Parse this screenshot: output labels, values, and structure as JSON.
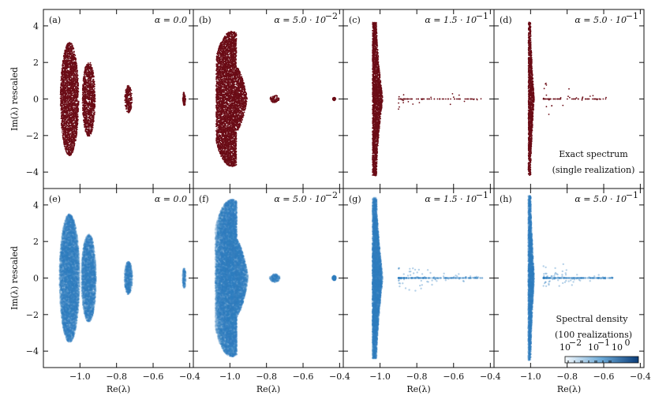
{
  "chart_data": {
    "type": "scatter",
    "figure_title": "",
    "xlabel": "Re(λ)",
    "ylabel": "Im(λ) rescaled",
    "xlim": [
      -1.2,
      -0.38
    ],
    "ylim": [
      -4.9,
      4.9
    ],
    "x_ticks": [
      -1.0,
      -0.8,
      -0.6,
      -0.4
    ],
    "x_tick_labels": [
      "−1.0",
      "−0.8",
      "−0.6",
      "−0.4"
    ],
    "y_ticks": [
      4,
      2,
      0,
      -2,
      -4
    ],
    "y_tick_labels": [
      "4",
      "2",
      "0",
      "−2",
      "−4"
    ],
    "rows": [
      {
        "name": "Exact spectrum",
        "legend_line1": "Exact spectrum",
        "legend_line2": "(single realization)",
        "color": "#6b0c16",
        "style": "points"
      },
      {
        "name": "Spectral density",
        "legend_line1": "Spectral density",
        "legend_line2": "(100 realizations)",
        "color": "#2f7dbf",
        "style": "density",
        "colorbar_labels": [
          "10",
          "−2",
          "10",
          "−1",
          "10",
          "0"
        ]
      }
    ],
    "panels": [
      {
        "label": "(a)",
        "alpha": "α = 0.0",
        "row": 0,
        "col": 0,
        "clusters": [
          {
            "center": -1.057,
            "half_width": 0.05,
            "half_height": 3.1
          },
          {
            "center": -0.952,
            "half_width": 0.035,
            "half_height": 2.05
          },
          {
            "center": -0.735,
            "half_width": 0.02,
            "half_height": 0.75
          },
          {
            "center": -0.43,
            "half_width": 0.008,
            "half_height": 0.4
          }
        ],
        "tail": {
          "start": 0,
          "end": 0
        }
      },
      {
        "label": "(b)",
        "alpha": "α = 5.0 · 10",
        "alpha_exp": "−2",
        "row": 0,
        "col": 1,
        "clusters": [
          {
            "center": -0.99,
            "half_width": 0.085,
            "half_height": 3.7,
            "shape": "diamond"
          },
          {
            "center": -0.755,
            "half_width": 0.025,
            "half_height": 0.2
          },
          {
            "center": -0.43,
            "half_width": 0.008,
            "half_height": 0.08
          }
        ],
        "tail": {
          "start": 0,
          "end": 0
        }
      },
      {
        "label": "(c)",
        "alpha": "α = 1.5 · 10",
        "alpha_exp": "−1",
        "row": 0,
        "col": 2,
        "clusters": [
          {
            "center": -1.02,
            "half_width": 0.035,
            "half_height": 4.2,
            "shape": "funnel"
          }
        ],
        "tail": {
          "start": -0.9,
          "end": -0.44
        }
      },
      {
        "label": "(d)",
        "alpha": "α = 5.0 · 10",
        "alpha_exp": "−1",
        "row": 0,
        "col": 3,
        "clusters": [
          {
            "center": -1.0,
            "half_width": 0.02,
            "half_height": 4.2,
            "shape": "funnel"
          }
        ],
        "tail": {
          "start": -0.93,
          "end": -0.58
        }
      },
      {
        "label": "(e)",
        "alpha": "α = 0.0",
        "row": 1,
        "col": 0,
        "clusters": [
          {
            "center": -1.057,
            "half_width": 0.055,
            "half_height": 3.5
          },
          {
            "center": -0.952,
            "half_width": 0.04,
            "half_height": 2.4
          },
          {
            "center": -0.735,
            "half_width": 0.022,
            "half_height": 0.9
          },
          {
            "center": -0.43,
            "half_width": 0.009,
            "half_height": 0.55
          }
        ],
        "tail": {
          "start": 0,
          "end": 0
        }
      },
      {
        "label": "(f)",
        "alpha": "α = 5.0 · 10",
        "alpha_exp": "−2",
        "row": 1,
        "col": 1,
        "clusters": [
          {
            "center": -0.99,
            "half_width": 0.09,
            "half_height": 4.3,
            "shape": "diamond"
          },
          {
            "center": -0.755,
            "half_width": 0.028,
            "half_height": 0.22
          },
          {
            "center": -0.43,
            "half_width": 0.01,
            "half_height": 0.12
          }
        ],
        "tail": {
          "start": 0,
          "end": 0
        }
      },
      {
        "label": "(g)",
        "alpha": "α = 1.5 · 10",
        "alpha_exp": "−1",
        "row": 1,
        "col": 2,
        "clusters": [
          {
            "center": -1.02,
            "half_width": 0.035,
            "half_height": 4.4,
            "shape": "funnel"
          }
        ],
        "tail": {
          "start": -0.9,
          "end": -0.44
        }
      },
      {
        "label": "(h)",
        "alpha": "α = 5.0 · 10",
        "alpha_exp": "−1",
        "row": 1,
        "col": 3,
        "clusters": [
          {
            "center": -1.0,
            "half_width": 0.02,
            "half_height": 4.5,
            "shape": "funnel"
          }
        ],
        "tail": {
          "start": -0.93,
          "end": -0.55
        }
      }
    ]
  }
}
